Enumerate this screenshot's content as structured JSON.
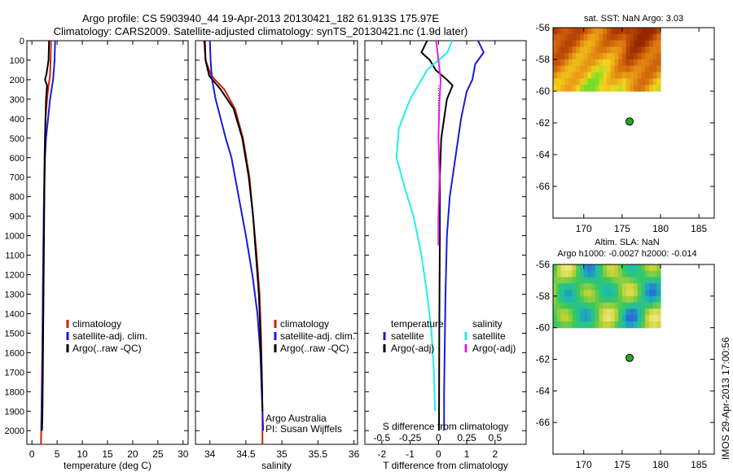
{
  "header": {
    "title_line1": "Argo profile: CS 5903940_44 19-Apr-2013 20130421_182 61.913S 175.97E",
    "title_line2": "Climatology: CARS2009. Satellite-adjusted climatology: synTS_20130421.nc (1.9d later)"
  },
  "stamp": "IMOS 29-Apr-2013 17:00:56",
  "colors": {
    "climatology": "#cc2200",
    "satellite": "#1a1adc",
    "argo": "#000000",
    "s_satellite": "#22eeee",
    "s_argo": "#dd22dd",
    "float_marker": "#22aa22"
  },
  "chart_data": [
    {
      "id": "temperature",
      "type": "line",
      "xlabel": "temperature (deg C)",
      "ylabel": "",
      "xlim": [
        -1,
        31
      ],
      "ylim": [
        2070,
        0
      ],
      "xticks": [
        0,
        5,
        10,
        15,
        20,
        25,
        30
      ],
      "yticks": [
        0,
        100,
        200,
        300,
        400,
        500,
        600,
        700,
        800,
        900,
        1000,
        1100,
        1200,
        1300,
        1400,
        1500,
        1600,
        1700,
        1800,
        1900,
        2000
      ],
      "legend": [
        "climatology",
        "satellite-adj. clim.",
        "Argo(..raw -QC)"
      ],
      "series": [
        {
          "name": "climatology",
          "color": "#cc2200",
          "x": [
            3.8,
            3.7,
            3.6,
            3.3,
            3.0,
            2.7,
            2.5,
            2.4,
            2.3,
            2.2,
            2.1,
            2.0,
            1.9,
            1.8
          ],
          "y": [
            0,
            100,
            180,
            230,
            300,
            400,
            600,
            800,
            1000,
            1200,
            1500,
            1700,
            1900,
            2070
          ]
        },
        {
          "name": "satellite-adj. clim.",
          "color": "#1a1adc",
          "x": [
            4.6,
            4.5,
            4.2,
            3.6,
            3.2,
            2.8,
            2.6,
            2.4,
            2.3,
            2.2,
            2.1,
            2.0,
            1.9
          ],
          "y": [
            0,
            100,
            200,
            300,
            400,
            500,
            600,
            800,
            1000,
            1300,
            1600,
            1800,
            2000
          ]
        },
        {
          "name": "Argo(..raw -QC)",
          "color": "#000000",
          "x": [
            3.4,
            3.3,
            2.9,
            2.6,
            3.0,
            2.8,
            2.6,
            2.5,
            2.4,
            2.3,
            2.2,
            2.1,
            2.0
          ],
          "y": [
            0,
            100,
            170,
            200,
            230,
            300,
            500,
            700,
            1000,
            1300,
            1600,
            1900,
            2000
          ]
        }
      ]
    },
    {
      "id": "salinity",
      "type": "line",
      "xlabel": "salinity",
      "ylabel": "",
      "xlim": [
        33.8,
        36.05
      ],
      "ylim": [
        2070,
        0
      ],
      "xticks": [
        34,
        34.5,
        35,
        35.5,
        36
      ],
      "xtick_labels": [
        "34",
        "34.5",
        "35",
        "35.5",
        "36"
      ],
      "legend": [
        "climatology",
        "satellite-adj. clim.",
        "Argo(..raw -QC)"
      ],
      "annotation": [
        "Argo Australia",
        "PI: Susan Wijffels"
      ],
      "series": [
        {
          "name": "climatology",
          "color": "#cc2200",
          "x": [
            33.92,
            33.94,
            34.02,
            34.2,
            34.35,
            34.46,
            34.55,
            34.6,
            34.65,
            34.69,
            34.71,
            34.72,
            34.73,
            34.73
          ],
          "y": [
            0,
            100,
            180,
            250,
            350,
            500,
            700,
            900,
            1100,
            1300,
            1500,
            1700,
            1900,
            2070
          ]
        },
        {
          "name": "satellite-adj. clim.",
          "color": "#1a1adc",
          "x": [
            34.0,
            34.01,
            34.03,
            34.08,
            34.15,
            34.22,
            34.3,
            34.4,
            34.5,
            34.59,
            34.66,
            34.7,
            34.72,
            34.74
          ],
          "y": [
            0,
            100,
            200,
            300,
            400,
            500,
            600,
            800,
            1000,
            1200,
            1400,
            1600,
            1800,
            2000
          ]
        },
        {
          "name": "Argo(..raw -QC)",
          "color": "#000000",
          "x": [
            33.93,
            33.94,
            33.99,
            34.15,
            34.33,
            34.45,
            34.54,
            34.6,
            34.64,
            34.68,
            34.7,
            34.72,
            34.73
          ],
          "y": [
            0,
            100,
            180,
            250,
            350,
            500,
            700,
            900,
            1100,
            1300,
            1500,
            1700,
            1900
          ]
        }
      ]
    },
    {
      "id": "difference",
      "type": "line",
      "xlabel": "T difference from climatology",
      "ylabel": "",
      "top_axis_label": "S difference from climatology",
      "xlim": [
        -2.6,
        3.1
      ],
      "ylim": [
        2070,
        0
      ],
      "xticks": [
        -2,
        -1,
        0,
        1,
        2
      ],
      "xtick_labels": [
        "-2",
        "-1",
        "0",
        "1",
        "2"
      ],
      "s_ticks": [
        -0.5,
        -0.25,
        0,
        0.25,
        0.5
      ],
      "s_tick_labels": [
        "-0.5",
        "-0.25",
        "0",
        "0.25",
        "0.5"
      ],
      "s_scale_per_T": 0.25,
      "legend_titles": [
        "temperature",
        "salinity"
      ],
      "legend": [
        "satellite",
        "Argo(-adj)",
        "satellite",
        "Argo(-adj)"
      ],
      "series": [
        {
          "name": "satellite",
          "quantity": "T",
          "color": "#1a1adc",
          "x": [
            1.4,
            1.6,
            1.3,
            1.2,
            1.0,
            0.8,
            0.6,
            0.4,
            0.3,
            0.25,
            0.22,
            0.2,
            0.2
          ],
          "y": [
            0,
            60,
            120,
            200,
            260,
            400,
            600,
            800,
            1000,
            1300,
            1600,
            1800,
            2000
          ]
        },
        {
          "name": "Argo(-adj)",
          "quantity": "T",
          "color": "#000000",
          "x": [
            -0.4,
            -0.6,
            -0.3,
            -0.1,
            0.3,
            0.5,
            0.3,
            0.1,
            0.05,
            0.05,
            0.03,
            0.02
          ],
          "y": [
            0,
            60,
            100,
            150,
            200,
            230,
            300,
            500,
            700,
            1000,
            1500,
            2000
          ]
        },
        {
          "name": "satellite",
          "quantity": "S",
          "color": "#22eeee",
          "x": [
            0.12,
            0.08,
            -0.1,
            -0.25,
            -0.35,
            -0.37,
            -0.3,
            -0.22,
            -0.15,
            -0.1,
            -0.06,
            -0.04,
            -0.03
          ],
          "y": [
            0,
            60,
            150,
            300,
            450,
            600,
            750,
            900,
            1100,
            1300,
            1500,
            1700,
            1900
          ]
        },
        {
          "name": "Argo(-adj)",
          "quantity": "S",
          "color": "#dd22dd",
          "x": [
            -0.02,
            0.0,
            0.02,
            0.01,
            0.0,
            0.01,
            0.0,
            0.0,
            0.0
          ],
          "y": [
            0,
            100,
            200,
            300,
            500,
            700,
            900,
            1000,
            1050
          ]
        }
      ]
    },
    {
      "id": "sst_map",
      "type": "heatmap",
      "title": "sat. SST: NaN Argo: 3.03",
      "xlim": [
        166,
        187
      ],
      "ylim": [
        -68,
        -56
      ],
      "xticks": [
        170,
        175,
        180,
        185
      ],
      "yticks": [
        -56,
        -58,
        -60,
        -62,
        -64,
        -66
      ],
      "data_extent": {
        "lon": [
          166,
          180
        ],
        "lat": [
          -60,
          -56
        ]
      },
      "float_position": {
        "lon": 175.97,
        "lat": -61.913
      },
      "colormap": "sst"
    },
    {
      "id": "sla_map",
      "type": "heatmap",
      "title_lines": [
        "Altim. SLA: NaN",
        "Argo h1000: -0.0027 h2000: -0.014"
      ],
      "xlim": [
        166,
        187
      ],
      "ylim": [
        -68,
        -56
      ],
      "xticks": [
        170,
        175,
        180,
        185
      ],
      "yticks": [
        -56,
        -58,
        -60,
        -62,
        -64,
        -66
      ],
      "data_extent": {
        "lon": [
          166,
          180
        ],
        "lat": [
          -60,
          -56
        ]
      },
      "float_position": {
        "lon": 175.97,
        "lat": -61.913
      },
      "colormap": "sla"
    }
  ]
}
